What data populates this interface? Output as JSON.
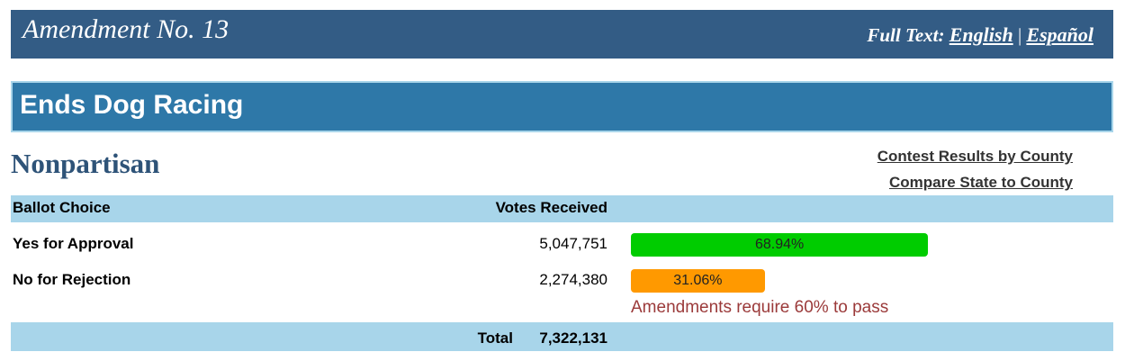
{
  "header": {
    "title": "Amendment No. 13",
    "full_text_label": "Full Text:",
    "links": [
      "English",
      "Español"
    ],
    "separator": "|"
  },
  "contest": {
    "title": "Ends Dog Racing",
    "party": "Nonpartisan",
    "links": [
      "Contest Results by County",
      "Compare State to County"
    ]
  },
  "table": {
    "columns": [
      "Ballot Choice",
      "Votes Received"
    ],
    "rows": [
      {
        "choice": "Yes for Approval",
        "votes": "5,047,751",
        "share": {
          "value": 68.94,
          "label": "68.94%"
        },
        "color": "#00cc00"
      },
      {
        "choice": "No for Rejection",
        "votes": "2,274,380",
        "share": {
          "value": 31.06,
          "label": "31.06%"
        },
        "color": "#ff9900"
      }
    ],
    "note": "Amendments require 60% to pass",
    "total_label": "Total",
    "total": "7,322,131"
  }
}
